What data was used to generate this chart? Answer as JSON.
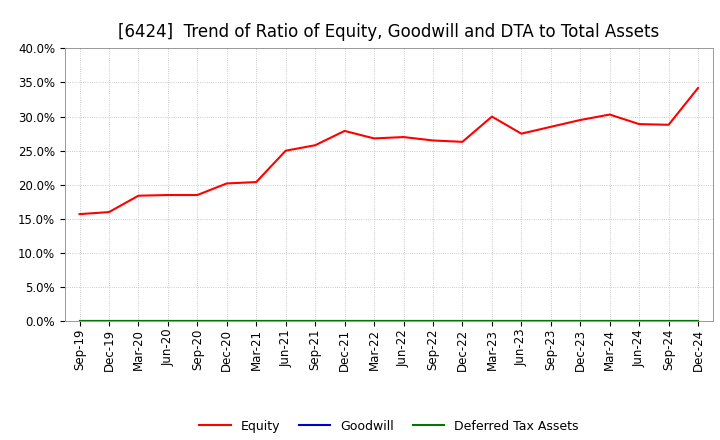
{
  "title": "[6424]  Trend of Ratio of Equity, Goodwill and DTA to Total Assets",
  "x_labels": [
    "Sep-19",
    "Dec-19",
    "Mar-20",
    "Jun-20",
    "Sep-20",
    "Dec-20",
    "Mar-21",
    "Jun-21",
    "Sep-21",
    "Dec-21",
    "Mar-22",
    "Jun-22",
    "Sep-22",
    "Dec-22",
    "Mar-23",
    "Jun-23",
    "Sep-23",
    "Dec-23",
    "Mar-24",
    "Jun-24",
    "Sep-24",
    "Dec-24"
  ],
  "equity": [
    0.157,
    0.16,
    0.184,
    0.185,
    0.185,
    0.202,
    0.204,
    0.25,
    0.258,
    0.279,
    0.268,
    0.27,
    0.265,
    0.263,
    0.3,
    0.275,
    0.285,
    0.295,
    0.303,
    0.289,
    0.288,
    0.342
  ],
  "goodwill": [
    0.0,
    0.0,
    0.0,
    0.0,
    0.0,
    0.0,
    0.0,
    0.0,
    0.0,
    0.0,
    0.0,
    0.0,
    0.0,
    0.0,
    0.0,
    0.0,
    0.0,
    0.0,
    0.0,
    0.0,
    0.0,
    0.0
  ],
  "dta": [
    0.0,
    0.0,
    0.0,
    0.0,
    0.0,
    0.0,
    0.0,
    0.0,
    0.0,
    0.0,
    0.0,
    0.0,
    0.0,
    0.0,
    0.0,
    0.0,
    0.0,
    0.0,
    0.0,
    0.0,
    0.0,
    0.0
  ],
  "equity_color": "#ff0000",
  "goodwill_color": "#0000cc",
  "dta_color": "#007700",
  "ylim": [
    0.0,
    0.4
  ],
  "yticks": [
    0.0,
    0.05,
    0.1,
    0.15,
    0.2,
    0.25,
    0.3,
    0.35,
    0.4
  ],
  "background_color": "#ffffff",
  "grid_color": "#bbbbbb",
  "title_fontsize": 12,
  "tick_fontsize": 8.5,
  "legend_labels": [
    "Equity",
    "Goodwill",
    "Deferred Tax Assets"
  ]
}
